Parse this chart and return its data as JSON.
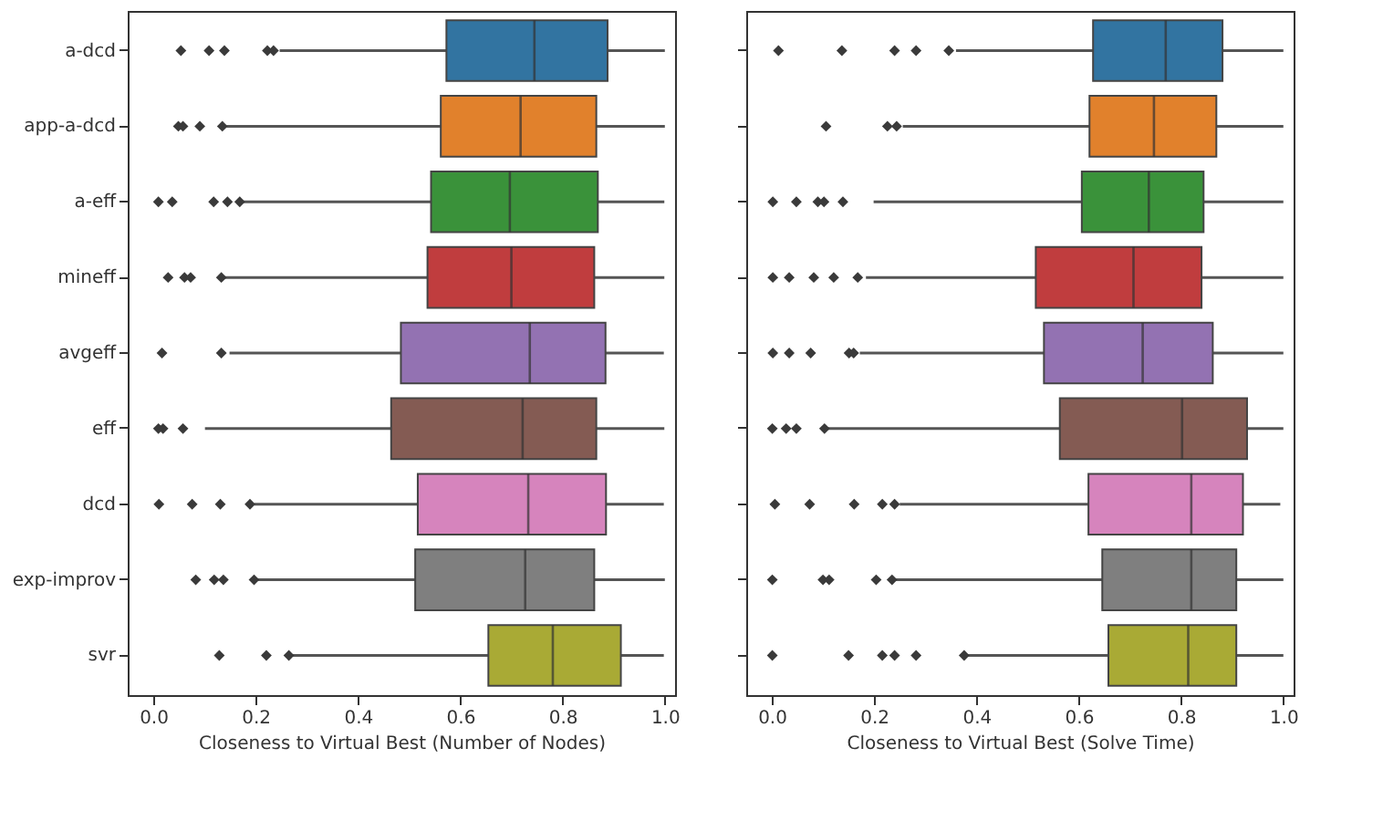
{
  "chart_data": [
    {
      "type": "box",
      "xlabel": "Closeness to Virtual Best (Number of Nodes)",
      "categories": [
        "a-dcd",
        "app-a-dcd",
        "a-eff",
        "mineff",
        "avgeff",
        "eff",
        "dcd",
        "exp-improv",
        "svr"
      ],
      "colors": [
        "#3274a1",
        "#e1812c",
        "#3a923a",
        "#c03d3e",
        "#9372b2",
        "#845b53",
        "#d684bd",
        "#7f7f7f",
        "#a9aa35"
      ],
      "orientation": "horizontal",
      "xlim": [
        -0.05,
        1.02
      ],
      "xticks": [
        {
          "value": 0,
          "label": "0.0"
        },
        0.2,
        0.4,
        0.6,
        0.8,
        {
          "value": 1,
          "label": "1.0"
        }
      ],
      "grid": false,
      "marker": "diamond",
      "boxes": [
        {
          "low": 0.247,
          "q1": 0.573,
          "median": 0.745,
          "q3": 0.888,
          "high": 1.0,
          "outliers": [
            0.054,
            0.109,
            0.139,
            0.223,
            0.235
          ]
        },
        {
          "low": 0.143,
          "q1": 0.562,
          "median": 0.718,
          "q3": 0.866,
          "high": 1.0,
          "outliers": [
            0.049,
            0.058,
            0.091,
            0.135
          ]
        },
        {
          "low": 0.175,
          "q1": 0.543,
          "median": 0.697,
          "q3": 0.869,
          "high": 0.999,
          "outliers": [
            0.01,
            0.037,
            0.118,
            0.145,
            0.169
          ]
        },
        {
          "low": 0.139,
          "q1": 0.536,
          "median": 0.7,
          "q3": 0.862,
          "high": 0.999,
          "outliers": [
            0.029,
            0.061,
            0.073,
            0.133
          ]
        },
        {
          "low": 0.149,
          "q1": 0.484,
          "median": 0.736,
          "q3": 0.884,
          "high": 0.998,
          "outliers": [
            0.017,
            0.133
          ]
        },
        {
          "low": 0.101,
          "q1": 0.465,
          "median": 0.722,
          "q3": 0.866,
          "high": 0.999,
          "outliers": [
            0.01,
            0.019,
            0.058
          ]
        },
        {
          "low": 0.197,
          "q1": 0.517,
          "median": 0.733,
          "q3": 0.885,
          "high": 0.998,
          "outliers": [
            0.011,
            0.076,
            0.131,
            0.189
          ]
        },
        {
          "low": 0.201,
          "q1": 0.512,
          "median": 0.727,
          "q3": 0.862,
          "high": 1.0,
          "outliers": [
            0.083,
            0.119,
            0.137,
            0.197
          ]
        },
        {
          "low": 0.269,
          "q1": 0.655,
          "median": 0.781,
          "q3": 0.914,
          "high": 0.998,
          "outliers": [
            0.129,
            0.221,
            0.265
          ]
        }
      ]
    },
    {
      "type": "box",
      "xlabel": "Closeness to Virtual Best (Solve Time)",
      "categories": [
        null,
        null,
        null,
        null,
        null,
        null,
        null,
        null,
        null
      ],
      "colors": [
        "#3274a1",
        "#e1812c",
        "#3a923a",
        "#c03d3e",
        "#9372b2",
        "#845b53",
        "#d684bd",
        "#7f7f7f",
        "#a9aa35"
      ],
      "orientation": "horizontal",
      "xlim": [
        -0.05,
        1.02
      ],
      "xticks": [
        {
          "value": 0,
          "label": "0.0"
        },
        0.2,
        0.4,
        0.6,
        0.8,
        {
          "value": 1,
          "label": "1.0"
        }
      ],
      "grid": false,
      "marker": "diamond",
      "tick_labels": "x",
      "boxes": [
        {
          "low": 0.36,
          "q1": 0.628,
          "median": 0.77,
          "q3": 0.881,
          "high": 1.0,
          "outliers": [
            0.013,
            0.137,
            0.24,
            0.282,
            0.346
          ]
        },
        {
          "low": 0.256,
          "q1": 0.621,
          "median": 0.747,
          "q3": 0.869,
          "high": 1.0,
          "outliers": [
            0.106,
            0.226,
            0.244
          ]
        },
        {
          "low": 0.199,
          "q1": 0.606,
          "median": 0.737,
          "q3": 0.844,
          "high": 1.0,
          "outliers": [
            0.002,
            0.048,
            0.09,
            0.102,
            0.139
          ]
        },
        {
          "low": 0.184,
          "q1": 0.516,
          "median": 0.707,
          "q3": 0.84,
          "high": 1.0,
          "outliers": [
            0.002,
            0.034,
            0.082,
            0.121,
            0.168
          ]
        },
        {
          "low": 0.172,
          "q1": 0.532,
          "median": 0.725,
          "q3": 0.862,
          "high": 1.0,
          "outliers": [
            0.002,
            0.034,
            0.076,
            0.151,
            0.16
          ]
        },
        {
          "low": 0.106,
          "q1": 0.563,
          "median": 0.802,
          "q3": 0.929,
          "high": 1.0,
          "outliers": [
            0.001,
            0.028,
            0.048,
            0.103
          ]
        },
        {
          "low": 0.25,
          "q1": 0.619,
          "median": 0.82,
          "q3": 0.921,
          "high": 0.994,
          "outliers": [
            0.006,
            0.074,
            0.161,
            0.216,
            0.24
          ]
        },
        {
          "low": 0.24,
          "q1": 0.646,
          "median": 0.82,
          "q3": 0.908,
          "high": 1.0,
          "outliers": [
            0.001,
            0.1,
            0.112,
            0.204,
            0.235
          ]
        },
        {
          "low": 0.382,
          "q1": 0.658,
          "median": 0.814,
          "q3": 0.908,
          "high": 1.0,
          "outliers": [
            0.001,
            0.15,
            0.216,
            0.24,
            0.282,
            0.376
          ]
        }
      ]
    }
  ]
}
